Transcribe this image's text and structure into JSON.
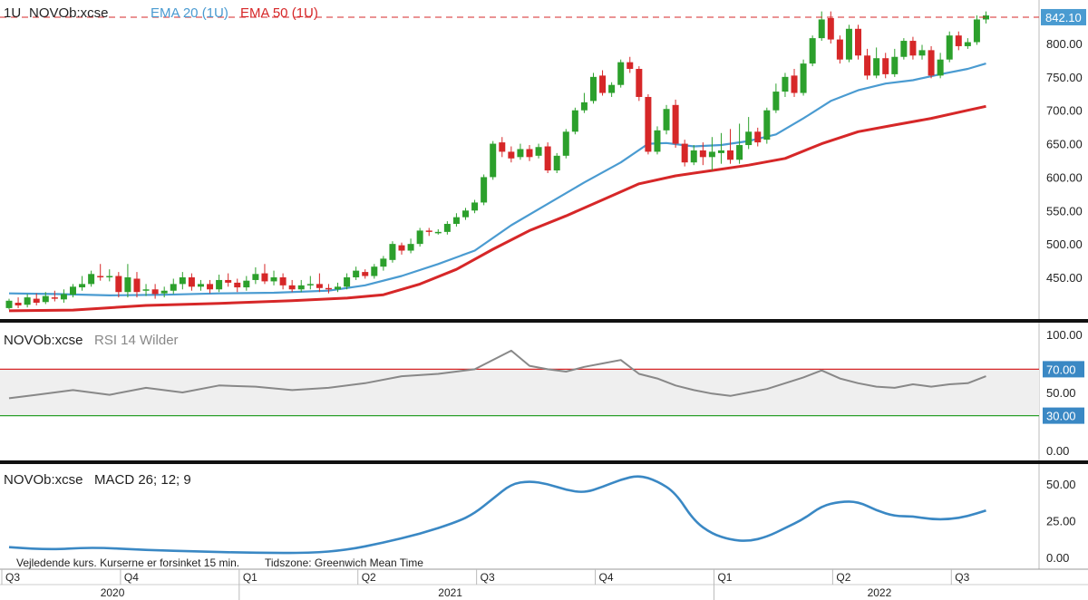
{
  "colors": {
    "up": "#2ca02c",
    "down": "#d62728",
    "ema20": "#4a9bd1",
    "ema50": "#d62728",
    "rsi_line": "#888888",
    "rsi_band": "#efefef",
    "rsi_upper": "#d62728",
    "rsi_lower": "#2ca02c",
    "macd": "#3a88c4",
    "last_price_bg": "#4a9bd1",
    "level_tag_bg": "#3a88c4"
  },
  "header": {
    "interval": "1U",
    "symbol": "NOVOb:xcse",
    "ema20_label": "EMA 20 (1U)",
    "ema50_label": "EMA 50 (1U)"
  },
  "rsi_header": {
    "symbol": "NOVOb:xcse",
    "indicator": "RSI 14 Wilder"
  },
  "macd_header": {
    "symbol": "NOVOb:xcse",
    "indicator": "MACD 26; 12; 9"
  },
  "footer": {
    "disclaimer": "Vejledende kurs. Kurserne er forsinket 15 min.",
    "timezone": "Tidszone: Greenwich Mean Time"
  },
  "chart_data": [
    {
      "type": "candlestick",
      "name": "price",
      "last_price": "842.10",
      "y_ticks": [
        "800.00",
        "750.00",
        "700.00",
        "650.00",
        "600.00",
        "550.00",
        "500.00",
        "450.00"
      ],
      "y_tick_values": [
        800,
        750,
        700,
        650,
        600,
        550,
        500,
        450
      ],
      "ylim": [
        400,
        850
      ],
      "candles": [
        [
          1,
          404,
          415,
          402,
          418
        ],
        [
          2,
          412,
          408,
          404,
          420
        ],
        [
          3,
          409,
          420,
          405,
          425
        ],
        [
          4,
          418,
          412,
          408,
          426
        ],
        [
          5,
          413,
          422,
          410,
          428
        ],
        [
          6,
          420,
          418,
          414,
          430
        ],
        [
          7,
          417,
          425,
          412,
          432
        ],
        [
          8,
          424,
          436,
          420,
          440
        ],
        [
          9,
          435,
          440,
          430,
          452
        ],
        [
          10,
          440,
          455,
          436,
          460
        ],
        [
          11,
          452,
          450,
          445,
          470
        ],
        [
          12,
          450,
          452,
          444,
          462
        ],
        [
          13,
          452,
          428,
          420,
          458
        ],
        [
          14,
          428,
          450,
          420,
          470
        ],
        [
          15,
          448,
          428,
          420,
          458
        ],
        [
          16,
          430,
          432,
          422,
          440
        ],
        [
          17,
          432,
          425,
          418,
          440
        ],
        [
          18,
          426,
          430,
          420,
          436
        ],
        [
          19,
          430,
          440,
          425,
          448
        ],
        [
          20,
          440,
          450,
          432,
          458
        ],
        [
          21,
          450,
          436,
          430,
          456
        ],
        [
          22,
          436,
          440,
          430,
          446
        ],
        [
          23,
          440,
          432,
          426,
          446
        ],
        [
          24,
          432,
          446,
          428,
          454
        ],
        [
          25,
          446,
          442,
          436,
          456
        ],
        [
          26,
          442,
          435,
          428,
          448
        ],
        [
          27,
          435,
          445,
          430,
          452
        ],
        [
          28,
          446,
          455,
          440,
          465
        ],
        [
          29,
          456,
          444,
          440,
          470
        ],
        [
          30,
          444,
          450,
          438,
          460
        ],
        [
          31,
          450,
          438,
          432,
          456
        ],
        [
          32,
          438,
          432,
          428,
          446
        ],
        [
          33,
          432,
          438,
          428,
          446
        ],
        [
          34,
          438,
          440,
          432,
          452
        ],
        [
          35,
          440,
          434,
          428,
          456
        ],
        [
          36,
          434,
          432,
          426,
          440
        ],
        [
          37,
          432,
          436,
          428,
          442
        ],
        [
          38,
          436,
          450,
          432,
          456
        ],
        [
          39,
          450,
          460,
          446,
          466
        ],
        [
          40,
          458,
          452,
          448,
          462
        ],
        [
          41,
          452,
          466,
          448,
          470
        ],
        [
          42,
          466,
          478,
          460,
          482
        ],
        [
          43,
          476,
          500,
          472,
          504
        ],
        [
          44,
          498,
          490,
          484,
          502
        ],
        [
          45,
          490,
          500,
          486,
          508
        ],
        [
          46,
          500,
          520,
          496,
          524
        ],
        [
          47,
          520,
          518,
          512,
          524
        ],
        [
          48,
          518,
          518,
          514,
          522
        ],
        [
          49,
          518,
          530,
          514,
          534
        ],
        [
          50,
          530,
          540,
          526,
          546
        ],
        [
          51,
          540,
          550,
          536,
          554
        ],
        [
          52,
          550,
          562,
          546,
          566
        ],
        [
          53,
          562,
          600,
          558,
          604
        ],
        [
          54,
          600,
          650,
          596,
          654
        ],
        [
          55,
          652,
          638,
          630,
          660
        ],
        [
          56,
          638,
          628,
          622,
          646
        ],
        [
          57,
          630,
          642,
          626,
          650
        ],
        [
          58,
          642,
          630,
          624,
          648
        ],
        [
          59,
          632,
          645,
          628,
          650
        ],
        [
          60,
          646,
          610,
          606,
          652
        ],
        [
          61,
          610,
          632,
          606,
          636
        ],
        [
          62,
          632,
          668,
          628,
          672
        ],
        [
          63,
          668,
          700,
          664,
          704
        ],
        [
          64,
          700,
          712,
          696,
          726
        ],
        [
          65,
          714,
          750,
          710,
          756
        ],
        [
          66,
          752,
          726,
          722,
          760
        ],
        [
          67,
          726,
          738,
          720,
          742
        ],
        [
          68,
          738,
          772,
          734,
          776
        ],
        [
          69,
          772,
          762,
          756,
          780
        ],
        [
          70,
          762,
          720,
          714,
          766
        ],
        [
          71,
          720,
          638,
          634,
          724
        ],
        [
          72,
          638,
          670,
          634,
          676
        ],
        [
          73,
          670,
          702,
          664,
          708
        ],
        [
          74,
          708,
          650,
          644,
          716
        ],
        [
          75,
          650,
          622,
          616,
          656
        ],
        [
          76,
          622,
          640,
          618,
          648
        ],
        [
          77,
          640,
          630,
          618,
          652
        ],
        [
          78,
          630,
          638,
          610,
          660
        ],
        [
          79,
          636,
          640,
          620,
          666
        ],
        [
          80,
          640,
          626,
          620,
          672
        ],
        [
          81,
          626,
          648,
          620,
          680
        ],
        [
          82,
          648,
          668,
          642,
          690
        ],
        [
          83,
          668,
          652,
          646,
          674
        ],
        [
          84,
          656,
          700,
          650,
          704
        ],
        [
          85,
          700,
          728,
          696,
          740
        ],
        [
          86,
          728,
          750,
          720,
          756
        ],
        [
          87,
          752,
          726,
          720,
          762
        ],
        [
          88,
          726,
          770,
          722,
          776
        ],
        [
          89,
          770,
          808,
          766,
          812
        ],
        [
          90,
          808,
          836,
          804,
          848
        ],
        [
          91,
          838,
          806,
          800,
          848
        ],
        [
          92,
          806,
          776,
          770,
          812
        ],
        [
          93,
          776,
          822,
          772,
          828
        ],
        [
          94,
          822,
          782,
          776,
          828
        ],
        [
          95,
          782,
          752,
          746,
          792
        ],
        [
          96,
          752,
          778,
          748,
          794
        ],
        [
          97,
          778,
          754,
          748,
          786
        ],
        [
          98,
          754,
          780,
          750,
          792
        ],
        [
          99,
          780,
          804,
          776,
          808
        ],
        [
          100,
          804,
          782,
          776,
          810
        ],
        [
          101,
          782,
          790,
          776,
          798
        ],
        [
          102,
          790,
          752,
          748,
          796
        ],
        [
          103,
          752,
          776,
          748,
          786
        ],
        [
          104,
          776,
          812,
          772,
          818
        ],
        [
          105,
          812,
          796,
          790,
          818
        ],
        [
          106,
          796,
          802,
          792,
          808
        ],
        [
          107,
          802,
          836,
          798,
          842
        ],
        [
          108,
          836,
          842,
          830,
          848
        ]
      ],
      "ema20": [
        [
          1,
          426
        ],
        [
          6,
          425
        ],
        [
          12,
          423
        ],
        [
          18,
          424
        ],
        [
          24,
          426
        ],
        [
          30,
          427
        ],
        [
          36,
          430
        ],
        [
          40,
          438
        ],
        [
          44,
          452
        ],
        [
          48,
          470
        ],
        [
          52,
          490
        ],
        [
          56,
          528
        ],
        [
          60,
          560
        ],
        [
          64,
          592
        ],
        [
          68,
          622
        ],
        [
          71,
          650
        ],
        [
          73,
          651
        ],
        [
          76,
          646
        ],
        [
          79,
          648
        ],
        [
          82,
          654
        ],
        [
          85,
          664
        ],
        [
          88,
          688
        ],
        [
          91,
          714
        ],
        [
          94,
          730
        ],
        [
          97,
          740
        ],
        [
          100,
          745
        ],
        [
          103,
          754
        ],
        [
          106,
          762
        ],
        [
          108,
          770
        ]
      ],
      "ema50": [
        [
          1,
          400
        ],
        [
          8,
          401
        ],
        [
          16,
          408
        ],
        [
          24,
          411
        ],
        [
          32,
          415
        ],
        [
          38,
          419
        ],
        [
          42,
          424
        ],
        [
          46,
          440
        ],
        [
          50,
          462
        ],
        [
          54,
          492
        ],
        [
          58,
          520
        ],
        [
          62,
          542
        ],
        [
          66,
          566
        ],
        [
          70,
          590
        ],
        [
          74,
          602
        ],
        [
          78,
          610
        ],
        [
          82,
          618
        ],
        [
          86,
          628
        ],
        [
          90,
          650
        ],
        [
          94,
          668
        ],
        [
          98,
          678
        ],
        [
          102,
          688
        ],
        [
          106,
          700
        ],
        [
          108,
          706
        ]
      ]
    },
    {
      "type": "line",
      "name": "RSI 14 Wilder",
      "y_ticks": [
        "100.00",
        "50.00",
        "0.00"
      ],
      "y_tick_values": [
        100,
        50,
        0
      ],
      "level_tags": [
        "70.00",
        "30.00"
      ],
      "levels": [
        70,
        30
      ],
      "ylim": [
        0,
        100
      ],
      "points": [
        [
          1,
          45
        ],
        [
          4,
          48
        ],
        [
          8,
          52
        ],
        [
          12,
          48
        ],
        [
          16,
          54
        ],
        [
          20,
          50
        ],
        [
          24,
          56
        ],
        [
          28,
          55
        ],
        [
          32,
          52
        ],
        [
          36,
          54
        ],
        [
          40,
          58
        ],
        [
          44,
          64
        ],
        [
          48,
          66
        ],
        [
          52,
          70
        ],
        [
          56,
          86
        ],
        [
          58,
          73
        ],
        [
          60,
          70
        ],
        [
          62,
          68
        ],
        [
          64,
          72
        ],
        [
          66,
          75
        ],
        [
          68,
          78
        ],
        [
          70,
          66
        ],
        [
          72,
          62
        ],
        [
          74,
          56
        ],
        [
          76,
          52
        ],
        [
          78,
          49
        ],
        [
          80,
          47
        ],
        [
          82,
          50
        ],
        [
          84,
          53
        ],
        [
          86,
          58
        ],
        [
          88,
          63
        ],
        [
          90,
          69
        ],
        [
          92,
          62
        ],
        [
          94,
          58
        ],
        [
          96,
          55
        ],
        [
          98,
          54
        ],
        [
          100,
          57
        ],
        [
          102,
          55
        ],
        [
          104,
          57
        ],
        [
          106,
          58
        ],
        [
          108,
          64
        ]
      ]
    },
    {
      "type": "line",
      "name": "MACD 26; 12; 9",
      "y_ticks": [
        "50.00",
        "25.00",
        "0.00"
      ],
      "y_tick_values": [
        50,
        25,
        0
      ],
      "ylim": [
        -5,
        60
      ],
      "points": [
        [
          1,
          7
        ],
        [
          5,
          5
        ],
        [
          10,
          7
        ],
        [
          16,
          5
        ],
        [
          22,
          4
        ],
        [
          28,
          3
        ],
        [
          34,
          3
        ],
        [
          38,
          5
        ],
        [
          42,
          10
        ],
        [
          46,
          16
        ],
        [
          50,
          24
        ],
        [
          52,
          30
        ],
        [
          54,
          40
        ],
        [
          56,
          50
        ],
        [
          58,
          52
        ],
        [
          60,
          50
        ],
        [
          62,
          46
        ],
        [
          64,
          44
        ],
        [
          66,
          48
        ],
        [
          68,
          53
        ],
        [
          70,
          56
        ],
        [
          72,
          52
        ],
        [
          74,
          44
        ],
        [
          76,
          25
        ],
        [
          78,
          16
        ],
        [
          80,
          12
        ],
        [
          82,
          11
        ],
        [
          84,
          14
        ],
        [
          86,
          20
        ],
        [
          88,
          26
        ],
        [
          90,
          35
        ],
        [
          92,
          38
        ],
        [
          94,
          38
        ],
        [
          96,
          32
        ],
        [
          98,
          28
        ],
        [
          100,
          28
        ],
        [
          102,
          26
        ],
        [
          104,
          26
        ],
        [
          106,
          28
        ],
        [
          108,
          32
        ]
      ]
    }
  ],
  "x_axis": {
    "quarters": [
      {
        "label": "Q3",
        "week": 1
      },
      {
        "label": "Q4",
        "week": 14
      },
      {
        "label": "Q1",
        "week": 27
      },
      {
        "label": "Q2",
        "week": 40
      },
      {
        "label": "Q3",
        "week": 53
      },
      {
        "label": "Q4",
        "week": 66
      },
      {
        "label": "Q1",
        "week": 79
      },
      {
        "label": "Q2",
        "week": 92
      },
      {
        "label": "Q3",
        "week": 105
      }
    ],
    "years": [
      {
        "label": "2020",
        "week": 11
      },
      {
        "label": "2021",
        "week": 48
      },
      {
        "label": "2022",
        "week": 95
      }
    ]
  }
}
